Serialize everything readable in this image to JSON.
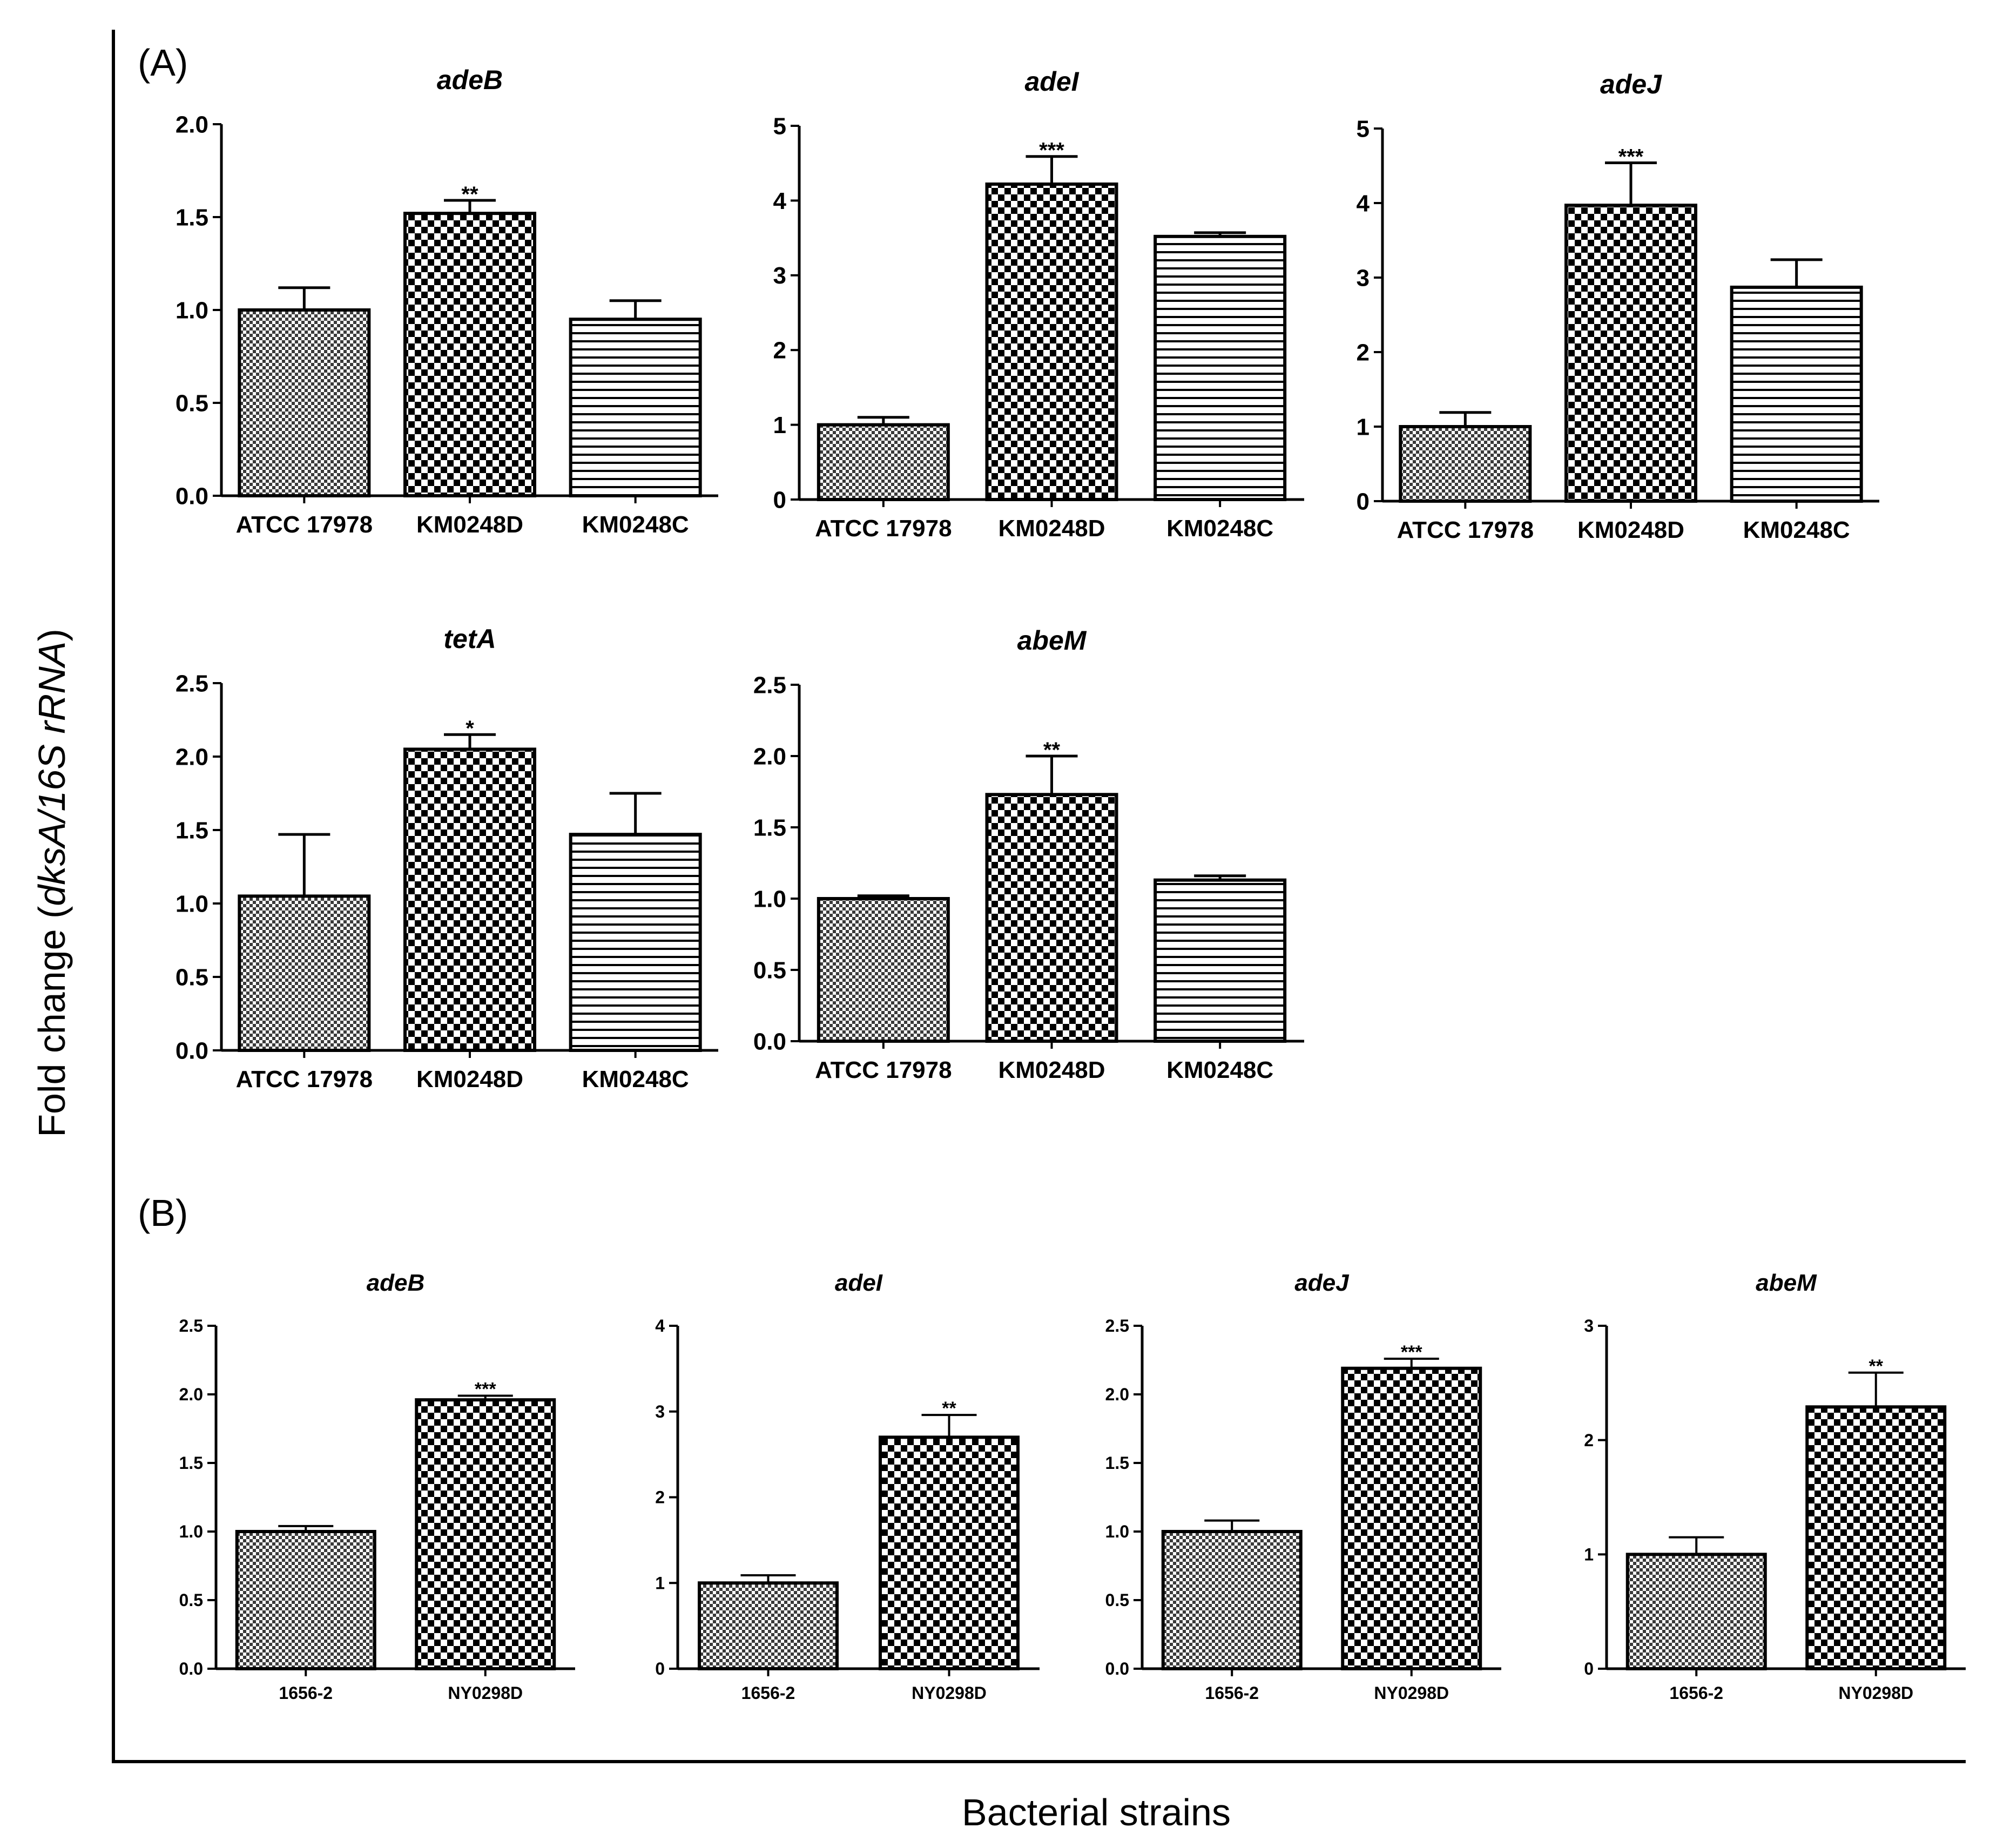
{
  "figure": {
    "y_axis_label": "Fold change (dksA/16S rRNA)",
    "y_axis_label_parts": [
      "Fold change (",
      "dksA/16S rRNA",
      ")"
    ],
    "x_axis_label": "Bacterial strains",
    "panel_labels": [
      "(A)",
      "(B)"
    ]
  },
  "colors": {
    "ink": "#000000",
    "background": "#ffffff",
    "bar_pattern_light": "#bdbdbd"
  },
  "chart_data": [
    {
      "id": "A-adeB",
      "panel": "(A)",
      "type": "bar",
      "title": "adeB",
      "categories": [
        "ATCC 17978",
        "KM0248D",
        "KM0248C"
      ],
      "values": [
        1.0,
        1.52,
        0.95
      ],
      "errors": [
        0.12,
        0.07,
        0.1
      ],
      "significance": [
        "",
        "**",
        ""
      ],
      "patterns": [
        "fine-checker",
        "checker",
        "hlines"
      ],
      "ylim": [
        0,
        2.0
      ],
      "yticks": [
        "0.0",
        "0.5",
        "1.0",
        "1.5",
        "2.0"
      ]
    },
    {
      "id": "A-adeI",
      "panel": "(A)",
      "type": "bar",
      "title": "adeI",
      "categories": [
        "ATCC 17978",
        "KM0248D",
        "KM0248C"
      ],
      "values": [
        1.0,
        4.22,
        3.52
      ],
      "errors": [
        0.1,
        0.37,
        0.05
      ],
      "significance": [
        "",
        "***",
        ""
      ],
      "patterns": [
        "fine-checker",
        "checker",
        "hlines"
      ],
      "ylim": [
        0,
        5
      ],
      "yticks": [
        "0",
        "1",
        "2",
        "3",
        "4",
        "5"
      ]
    },
    {
      "id": "A-adeJ",
      "panel": "(A)",
      "type": "bar",
      "title": "adeJ",
      "categories": [
        "ATCC 17978",
        "KM0248D",
        "KM0248C"
      ],
      "values": [
        1.0,
        3.97,
        2.87
      ],
      "errors": [
        0.19,
        0.57,
        0.37
      ],
      "significance": [
        "",
        "***",
        ""
      ],
      "patterns": [
        "fine-checker",
        "checker",
        "hlines"
      ],
      "ylim": [
        0,
        5
      ],
      "yticks": [
        "0",
        "1",
        "2",
        "3",
        "4",
        "5"
      ]
    },
    {
      "id": "A-tetA",
      "panel": "(A)",
      "type": "bar",
      "title": "tetA",
      "categories": [
        "ATCC 17978",
        "KM0248D",
        "KM0248C"
      ],
      "values": [
        1.05,
        2.05,
        1.47
      ],
      "errors": [
        0.42,
        0.1,
        0.28
      ],
      "significance": [
        "",
        "*",
        ""
      ],
      "patterns": [
        "fine-checker",
        "checker",
        "hlines"
      ],
      "ylim": [
        0,
        2.5
      ],
      "yticks": [
        "0.0",
        "0.5",
        "1.0",
        "1.5",
        "2.0",
        "2.5"
      ]
    },
    {
      "id": "A-abeM",
      "panel": "(A)",
      "type": "bar",
      "title": "abeM",
      "categories": [
        "ATCC 17978",
        "KM0248D",
        "KM0248C"
      ],
      "values": [
        1.0,
        1.73,
        1.13
      ],
      "errors": [
        0.02,
        0.27,
        0.03
      ],
      "significance": [
        "",
        "**",
        ""
      ],
      "patterns": [
        "fine-checker",
        "checker",
        "hlines"
      ],
      "ylim": [
        0,
        2.5
      ],
      "yticks": [
        "0.0",
        "0.5",
        "1.0",
        "1.5",
        "2.0",
        "2.5"
      ]
    },
    {
      "id": "B-adeB",
      "panel": "(B)",
      "type": "bar",
      "title": "adeB",
      "categories": [
        "1656-2",
        "NY0298D"
      ],
      "values": [
        1.0,
        1.96
      ],
      "errors": [
        0.04,
        0.03
      ],
      "significance": [
        "",
        "***"
      ],
      "patterns": [
        "fine-checker",
        "checker"
      ],
      "ylim": [
        0,
        2.5
      ],
      "yticks": [
        "0.0",
        "0.5",
        "1.0",
        "1.5",
        "2.0",
        "2.5"
      ]
    },
    {
      "id": "B-adeI",
      "panel": "(B)",
      "type": "bar",
      "title": "adeI",
      "categories": [
        "1656-2",
        "NY0298D"
      ],
      "values": [
        1.0,
        2.7
      ],
      "errors": [
        0.09,
        0.26
      ],
      "significance": [
        "",
        "**"
      ],
      "patterns": [
        "fine-checker",
        "checker"
      ],
      "ylim": [
        0,
        4
      ],
      "yticks": [
        "0",
        "1",
        "2",
        "3",
        "4"
      ]
    },
    {
      "id": "B-adeJ",
      "panel": "(B)",
      "type": "bar",
      "title": "adeJ",
      "categories": [
        "1656-2",
        "NY0298D"
      ],
      "values": [
        1.0,
        2.19
      ],
      "errors": [
        0.08,
        0.07
      ],
      "significance": [
        "",
        "***"
      ],
      "patterns": [
        "fine-checker",
        "checker"
      ],
      "ylim": [
        0,
        2.5
      ],
      "yticks": [
        "0.0",
        "0.5",
        "1.0",
        "1.5",
        "2.0",
        "2.5"
      ]
    },
    {
      "id": "B-abeM",
      "panel": "(B)",
      "type": "bar",
      "title": "abeM",
      "categories": [
        "1656-2",
        "NY0298D"
      ],
      "values": [
        1.0,
        2.29
      ],
      "errors": [
        0.15,
        0.3
      ],
      "significance": [
        "",
        "**"
      ],
      "patterns": [
        "fine-checker",
        "checker"
      ],
      "ylim": [
        0,
        3
      ],
      "yticks": [
        "0",
        "1",
        "2",
        "3"
      ]
    }
  ]
}
